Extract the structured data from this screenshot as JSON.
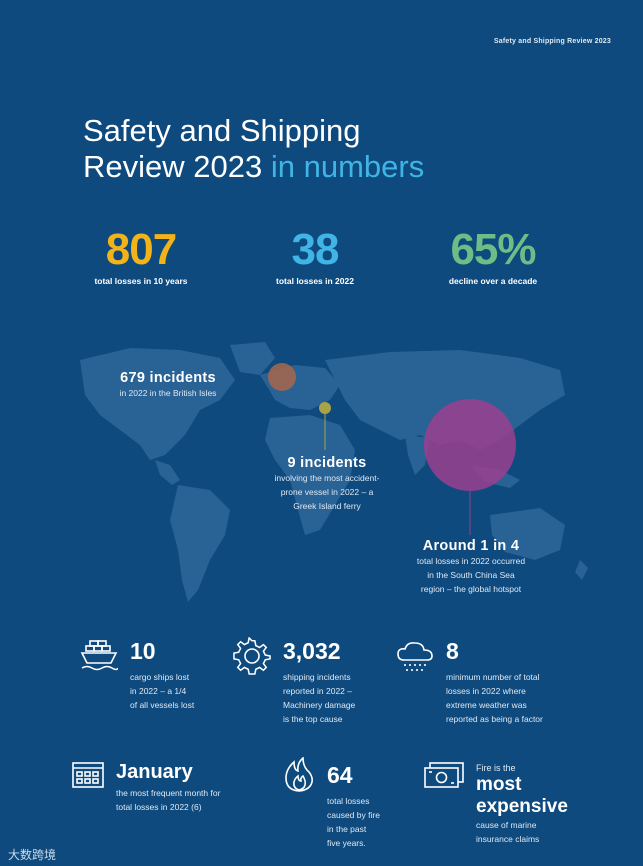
{
  "header": {
    "tag": "Safety and Shipping Review 2023"
  },
  "title": {
    "line1": "Safety and Shipping",
    "line2_main": "Review 2023",
    "line2_accent": "in numbers"
  },
  "colors": {
    "background": "#0e4a7e",
    "accent_blue": "#3fb4e5",
    "yellow": "#f2b21a",
    "green": "#6dbd87",
    "orange_dot": "#a8674a",
    "olive_dot": "#a8a347",
    "magenta_dot": "#9b3f8f"
  },
  "headline_stats": [
    {
      "value": "807",
      "label": "total losses in 10 years",
      "color": "#f2b21a"
    },
    {
      "value": "38",
      "label": "total losses in 2022",
      "color": "#3fb4e5"
    },
    {
      "value": "65%",
      "label": "decline over a decade",
      "color": "#6dbd87"
    }
  ],
  "map_callouts": [
    {
      "title": "679 incidents",
      "lines": [
        "in 2022 in the British Isles"
      ]
    },
    {
      "title": "9 incidents",
      "lines": [
        "involving the most accident-",
        "prone vessel in 2022 – a",
        "Greek Island ferry"
      ]
    },
    {
      "title": "Around 1 in 4",
      "lines": [
        "total losses in 2022 occurred",
        "in the South China Sea",
        "region – the global hotspot"
      ]
    }
  ],
  "facts": [
    {
      "icon": "cargo-ship-icon",
      "value": "10",
      "lines": [
        "cargo ships lost",
        "in 2022 – a 1/4",
        "of all vessels lost"
      ]
    },
    {
      "icon": "gear-icon",
      "value": "3,032",
      "lines": [
        "shipping incidents",
        "reported in 2022 –",
        "Machinery damage",
        "is the top cause"
      ]
    },
    {
      "icon": "storm-cloud-icon",
      "value": "8",
      "lines": [
        "minimum number of total",
        "losses in 2022 where",
        "extreme weather was",
        "reported as being a factor"
      ]
    },
    {
      "icon": "calendar-icon",
      "value": "January",
      "lines": [
        "the most frequent month for",
        "total losses in 2022 (6)"
      ]
    },
    {
      "icon": "fire-icon",
      "value": "64",
      "lines": [
        "total losses",
        "caused by fire",
        "in the past",
        "five years."
      ]
    },
    {
      "icon": "money-icon",
      "pre": "Fire is the",
      "value_line1": "most",
      "value_line2": "expensive",
      "lines": [
        "cause of marine",
        "insurance claims"
      ]
    }
  ],
  "watermark": "大数跨境"
}
